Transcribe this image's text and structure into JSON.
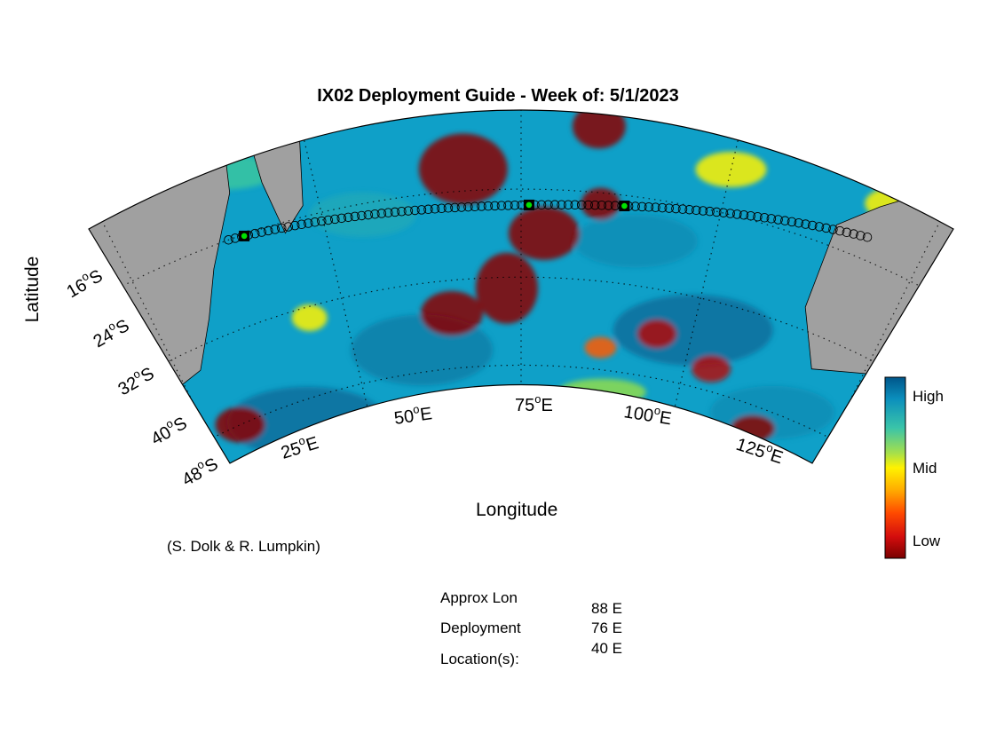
{
  "title": "IX02 Deployment Guide - Week of: 5/1/2023",
  "axes": {
    "xlabel": "Longitude",
    "ylabel": "Latitude",
    "lon_ticks": [
      {
        "value": 25,
        "deg": "25",
        "hemi": "E"
      },
      {
        "value": 50,
        "deg": "50",
        "hemi": "E"
      },
      {
        "value": 75,
        "deg": "75",
        "hemi": "E"
      },
      {
        "value": 100,
        "deg": "100",
        "hemi": "E"
      },
      {
        "value": 125,
        "deg": "125",
        "hemi": "E"
      }
    ],
    "lat_ticks": [
      {
        "value": -16,
        "deg": "16",
        "hemi": "S"
      },
      {
        "value": -24,
        "deg": "24",
        "hemi": "S"
      },
      {
        "value": -32,
        "deg": "32",
        "hemi": "S"
      },
      {
        "value": -40,
        "deg": "40",
        "hemi": "S"
      },
      {
        "value": -48,
        "deg": "48",
        "hemi": "S"
      }
    ],
    "deg_symbol": "o"
  },
  "colorbar": {
    "labels": [
      "High",
      "Mid",
      "Low"
    ],
    "colors": [
      "#00008f",
      "#0a5c9c",
      "#0ea5c8",
      "#39c9a4",
      "#8fdc4e",
      "#dce93b",
      "#fff200",
      "#ffb000",
      "#ff5a00",
      "#e01010",
      "#8b0000"
    ]
  },
  "credit": "(S. Dolk & R. Lumpkin)",
  "deployment": {
    "label_lines": [
      "Approx Lon",
      "Deployment",
      "Location(s):"
    ],
    "values": [
      "88 E",
      "76 E",
      "40 E"
    ],
    "marker_color": "#00e000"
  },
  "colors": {
    "land": "#a0a0a0",
    "high": "#0a6e9c",
    "mid": "#fff200",
    "low": "#8b0000"
  }
}
